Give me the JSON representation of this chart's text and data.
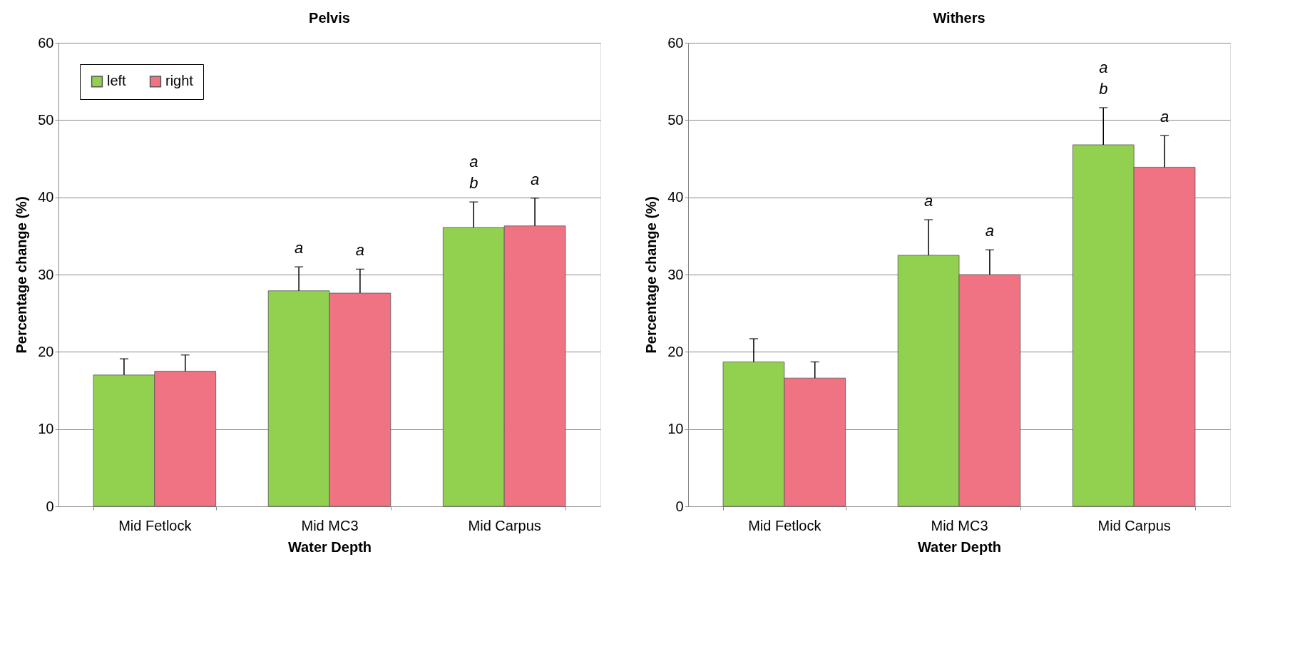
{
  "chart_data": [
    {
      "type": "bar",
      "title": "Pelvis",
      "xlabel": "Water Depth",
      "ylabel": "Percentage change (%)",
      "categories": [
        "Mid Fetlock",
        "Mid MC3",
        "Mid Carpus"
      ],
      "series": [
        {
          "name": "left",
          "color": "#92d050",
          "values": [
            17.0,
            27.9,
            36.1
          ],
          "errors": [
            [
              17.0,
              19.1
            ],
            [
              27.9,
              31.0
            ],
            [
              36.1,
              39.4
            ]
          ]
        },
        {
          "name": "right",
          "color": "#f07384",
          "values": [
            17.5,
            27.6,
            36.3
          ],
          "errors": [
            [
              17.5,
              19.6
            ],
            [
              27.6,
              30.7
            ],
            [
              36.3,
              39.9
            ]
          ]
        }
      ],
      "ylim": [
        0,
        60
      ],
      "yticks": [
        0,
        10,
        20,
        30,
        40,
        50,
        60
      ],
      "grid": "y",
      "legend": "top left",
      "annotations": [
        "a",
        "a",
        "a\nb",
        "a"
      ]
    },
    {
      "type": "bar",
      "title": "Withers",
      "xlabel": "Water Depth",
      "ylabel": "Percentage change (%)",
      "categories": [
        "Mid Fetlock",
        "Mid MC3",
        "Mid Carpus"
      ],
      "series": [
        {
          "name": "left",
          "color": "#92d050",
          "values": [
            18.7,
            32.5,
            46.8
          ],
          "errors": [
            [
              18.7,
              21.7
            ],
            [
              32.5,
              37.1
            ],
            [
              46.8,
              51.6
            ]
          ]
        },
        {
          "name": "right",
          "color": "#f07384",
          "values": [
            16.6,
            30.0,
            43.9
          ],
          "errors": [
            [
              16.6,
              18.7
            ],
            [
              30.0,
              33.2
            ],
            [
              43.9,
              48.0
            ]
          ]
        }
      ],
      "ylim": [
        0,
        60
      ],
      "yticks": [
        0,
        10,
        20,
        30,
        40,
        50,
        60
      ],
      "grid": "y",
      "legend": "top left",
      "annotations": [
        "a",
        "a",
        "a\nb",
        "a"
      ]
    }
  ]
}
